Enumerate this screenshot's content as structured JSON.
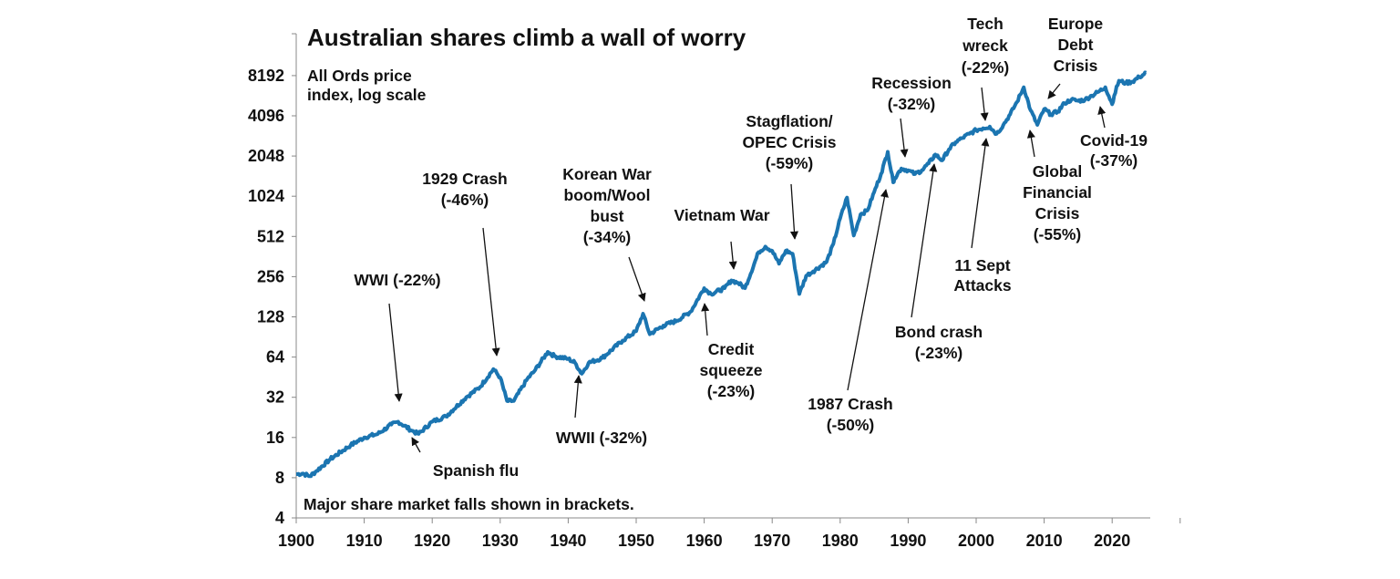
{
  "chart_data": {
    "type": "line",
    "title": "Australian shares climb a wall of worry",
    "subtitle": [
      "All Ords price",
      "index, log scale"
    ],
    "footnote": "Major share market falls shown in brackets.",
    "y_scale": "log2",
    "ylim": [
      4,
      16384
    ],
    "xlim": [
      1900,
      2026
    ],
    "y_ticks": [
      "4",
      "8",
      "16",
      "32",
      "64",
      "128",
      "256",
      "512",
      "1024",
      "2048",
      "4096",
      "8192"
    ],
    "x_ticks": [
      "1900",
      "1910",
      "1920",
      "1930",
      "1940",
      "1950",
      "1960",
      "1970",
      "1980",
      "1990",
      "2000",
      "2010",
      "2020"
    ],
    "series_color": "#1b75b1",
    "grid": false,
    "x": [
      1900,
      1901,
      1902,
      1903,
      1905,
      1908,
      1910,
      1912,
      1914,
      1915,
      1917,
      1918,
      1920,
      1922,
      1925,
      1927,
      1929,
      1930,
      1931,
      1932,
      1934,
      1935,
      1937,
      1938,
      1940,
      1941,
      1942,
      1943,
      1945,
      1948,
      1950,
      1951,
      1952,
      1954,
      1956,
      1958,
      1960,
      1961,
      1963,
      1964,
      1965,
      1966,
      1968,
      1969,
      1970,
      1971,
      1972,
      1973,
      1974,
      1975,
      1976,
      1978,
      1979,
      1980,
      1981,
      1982,
      1983,
      1984,
      1985,
      1986,
      1987,
      1987.8,
      1988,
      1989,
      1990,
      1991,
      1992,
      1993,
      1994,
      1995,
      1996,
      1997,
      1998,
      1999,
      2000,
      2001,
      2002,
      2003,
      2004,
      2005,
      2006,
      2007,
      2008,
      2009,
      2010,
      2011,
      2012,
      2013,
      2014,
      2015,
      2016,
      2017,
      2018,
      2019,
      2020,
      2020.3,
      2021,
      2022,
      2023,
      2024,
      2025
    ],
    "values": [
      8.5,
      8.6,
      8.2,
      9,
      11,
      14,
      16,
      17,
      20,
      21,
      18,
      17,
      21,
      23,
      32,
      38,
      52,
      45,
      30,
      30,
      44,
      50,
      70,
      65,
      62,
      58,
      48,
      58,
      63,
      85,
      100,
      135,
      95,
      110,
      120,
      140,
      210,
      190,
      210,
      240,
      230,
      210,
      390,
      430,
      400,
      320,
      400,
      380,
      190,
      260,
      280,
      330,
      450,
      700,
      1000,
      520,
      750,
      800,
      1100,
      1500,
      2200,
      1300,
      1400,
      1650,
      1600,
      1500,
      1600,
      1800,
      2100,
      1900,
      2300,
      2600,
      2800,
      3000,
      3200,
      3300,
      3400,
      3000,
      3500,
      4200,
      5200,
      6700,
      4500,
      3500,
      4600,
      4200,
      4400,
      5100,
      5400,
      5300,
      5400,
      5800,
      6200,
      6700,
      5000,
      5800,
      7500,
      7200,
      7400,
      8000,
      8600
    ],
    "annotations": [
      {
        "lines": [
          "WWI (-22%)"
        ]
      },
      {
        "lines": [
          "1929 Crash",
          "(-46%)"
        ]
      },
      {
        "lines": [
          "Korean War",
          "boom/Wool",
          "bust",
          "(-34%)"
        ]
      },
      {
        "lines": [
          "Vietnam War"
        ]
      },
      {
        "lines": [
          "Stagflation/",
          "OPEC Crisis",
          "(-59%)"
        ]
      },
      {
        "lines": [
          "Recession",
          "(-32%)"
        ]
      },
      {
        "lines": [
          "Tech",
          "wreck",
          "(-22%)"
        ]
      },
      {
        "lines": [
          "Europe",
          "Debt",
          "Crisis"
        ]
      },
      {
        "lines": [
          "Covid-19",
          "(-37%)"
        ]
      },
      {
        "lines": [
          "Global",
          "Financial",
          "Crisis",
          "(-55%)"
        ]
      },
      {
        "lines": [
          "11 Sept",
          "Attacks"
        ]
      },
      {
        "lines": [
          "Bond crash",
          "(-23%)"
        ]
      },
      {
        "lines": [
          "1987 Crash",
          "(-50%)"
        ]
      },
      {
        "lines": [
          "Credit",
          "squeeze",
          "(-23%)"
        ]
      },
      {
        "lines": [
          "WWII (-32%)"
        ]
      },
      {
        "lines": [
          "Spanish flu"
        ]
      }
    ]
  }
}
